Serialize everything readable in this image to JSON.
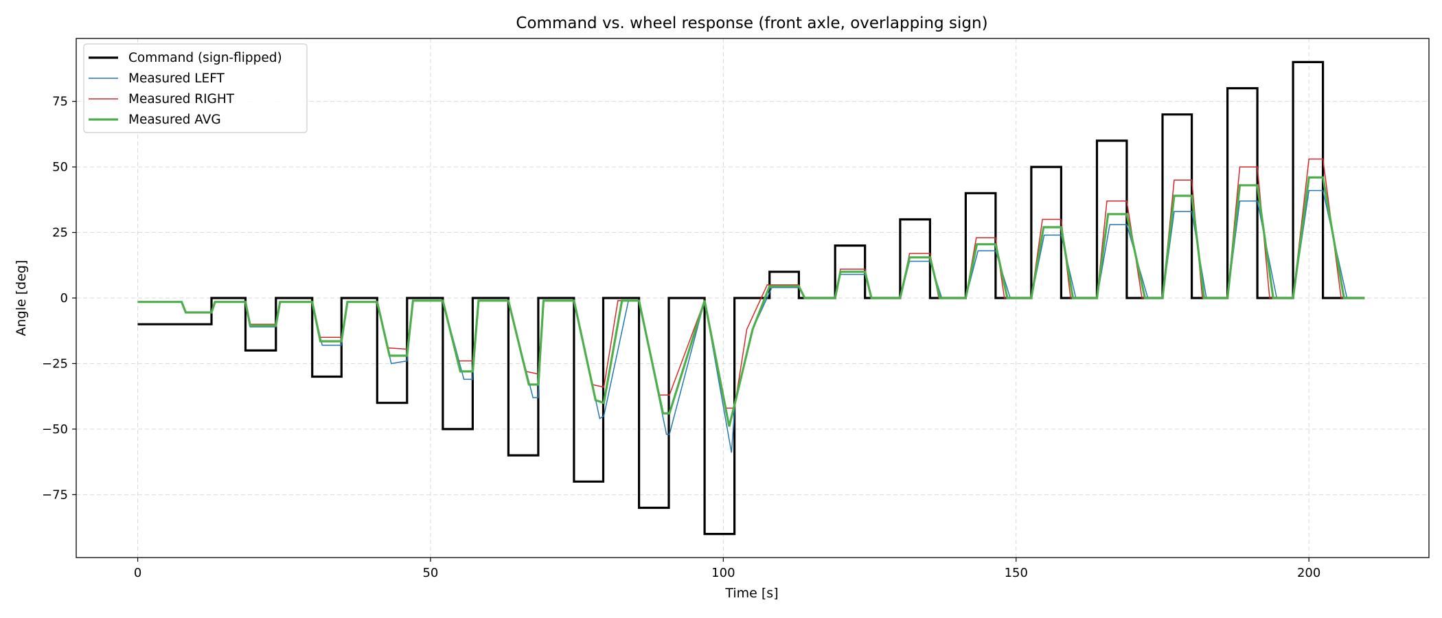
{
  "chart_data": {
    "type": "line",
    "title": "Command vs. wheel response (front axle, overlapping sign)",
    "xlabel": "Time [s]",
    "ylabel": "Angle [deg]",
    "xlim": [
      -10.5,
      220.5
    ],
    "ylim": [
      -99,
      99
    ],
    "xticks": [
      0,
      50,
      100,
      150,
      200
    ],
    "yticks": [
      -75,
      -50,
      -25,
      0,
      25,
      50,
      75
    ],
    "grid": true,
    "legend_position": "top-left",
    "series": [
      {
        "name": "Command (sign-flipped)",
        "color": "#000000",
        "style": "step",
        "x": [
          0,
          12.6,
          12.6,
          18.4,
          18.4,
          23.6,
          23.6,
          29.8,
          29.8,
          34.8,
          34.8,
          40.9,
          40.9,
          46.0,
          46.0,
          52.1,
          52.1,
          57.2,
          57.2,
          63.3,
          63.3,
          68.4,
          68.4,
          74.5,
          74.5,
          79.5,
          79.5,
          85.6,
          85.6,
          90.7,
          90.7,
          96.8,
          96.8,
          101.9,
          101.9,
          107.9,
          107.9,
          112.9,
          112.9,
          119.1,
          119.1,
          124.2,
          124.2,
          130.2,
          130.2,
          135.3,
          135.3,
          141.4,
          141.4,
          146.5,
          146.5,
          152.6,
          152.6,
          157.7,
          157.7,
          163.8,
          163.8,
          168.9,
          168.9,
          175.0,
          175.0,
          180.0,
          180.0,
          186.1,
          186.1,
          191.2,
          191.2,
          197.3,
          197.3,
          202.4,
          202.4,
          209.5
        ],
        "values": [
          -10,
          -10,
          0,
          0,
          -20,
          -20,
          0,
          0,
          -30,
          -30,
          0,
          0,
          -40,
          -40,
          0,
          0,
          -50,
          -50,
          0,
          0,
          -60,
          -60,
          0,
          0,
          -70,
          -70,
          0,
          0,
          -80,
          -80,
          0,
          0,
          -90,
          -90,
          0,
          0,
          10,
          10,
          0,
          0,
          20,
          20,
          0,
          0,
          30,
          30,
          0,
          0,
          40,
          40,
          0,
          0,
          50,
          50,
          0,
          0,
          60,
          60,
          0,
          0,
          70,
          70,
          0,
          0,
          80,
          80,
          0,
          0,
          90,
          90,
          0,
          0
        ]
      },
      {
        "name": "Measured LEFT",
        "color": "#1f77b4",
        "x": [
          0,
          7.5,
          8.2,
          12.6,
          13.2,
          18.4,
          19.2,
          23.6,
          24.3,
          29.8,
          31.5,
          34.8,
          35.8,
          40.9,
          43.3,
          46.0,
          47.0,
          52.1,
          55.7,
          57.2,
          58.2,
          63.3,
          67.5,
          68.4,
          69.3,
          74.5,
          78.9,
          79.6,
          83.8,
          85.6,
          90.3,
          90.8,
          96.8,
          101.4,
          102.0,
          105.0,
          108.3,
          112.9,
          114.0,
          119.1,
          120.0,
          124.2,
          125.3,
          130.2,
          131.8,
          135.3,
          137.3,
          141.4,
          143.5,
          146.5,
          149.0,
          152.6,
          154.8,
          157.7,
          160.2,
          163.8,
          166.0,
          168.9,
          172.5,
          175.0,
          177.0,
          180.0,
          182.5,
          186.1,
          188.2,
          191.2,
          194.5,
          197.3,
          200.0,
          202.4,
          206.5,
          209.5
        ],
        "values": [
          -1.5,
          -1.5,
          -5.5,
          -5.5,
          -1.5,
          -1.5,
          -11,
          -11,
          -1.5,
          -1.5,
          -18,
          -18,
          -1.5,
          -1.5,
          -25,
          -24,
          -1,
          -1,
          -31,
          -31,
          -1,
          -1,
          -38,
          -38,
          -1,
          -1,
          -46,
          -45,
          -1,
          -1,
          -52,
          -52,
          -1,
          -59,
          -40,
          -12,
          4,
          4,
          0,
          0,
          9,
          9,
          0,
          0,
          14,
          14,
          0,
          0,
          18,
          18,
          0,
          0,
          24,
          24,
          0,
          0,
          28,
          28,
          0,
          0,
          33,
          33,
          0,
          0,
          37,
          37,
          0,
          0,
          41,
          41,
          0,
          0
        ]
      },
      {
        "name": "Measured RIGHT",
        "color": "#d62728",
        "x": [
          0,
          7.5,
          8.2,
          12.6,
          13.2,
          18.4,
          19.2,
          23.6,
          24.3,
          29.8,
          31.0,
          34.8,
          35.8,
          40.9,
          42.6,
          46.0,
          47.0,
          52.1,
          54.6,
          57.2,
          58.2,
          63.3,
          66.3,
          68.4,
          69.3,
          74.5,
          77.6,
          79.6,
          82.0,
          85.6,
          89.1,
          90.8,
          96.8,
          100.5,
          101.9,
          104.0,
          107.5,
          112.9,
          113.8,
          119.1,
          120.0,
          124.2,
          125.3,
          130.2,
          131.8,
          135.3,
          136.8,
          141.4,
          143.2,
          146.5,
          148.0,
          152.6,
          154.5,
          157.7,
          159.3,
          163.8,
          165.5,
          168.9,
          171.5,
          175.0,
          177.0,
          180.0,
          181.8,
          186.1,
          188.2,
          191.2,
          193.3,
          197.3,
          200.0,
          202.4,
          205.5,
          209.5
        ],
        "values": [
          -1.5,
          -1.5,
          -5.5,
          -5.5,
          -1.5,
          -1.5,
          -10,
          -10,
          -1.5,
          -1.5,
          -15,
          -15,
          -1.5,
          -1.5,
          -19,
          -19.5,
          -1,
          -1,
          -24,
          -24,
          -1,
          -1,
          -28,
          -29,
          -1,
          -1,
          -33,
          -34,
          -1,
          -1,
          -37,
          -37,
          -1,
          -42,
          -42,
          -12,
          5,
          5,
          0,
          0,
          11,
          11,
          0,
          0,
          17,
          17,
          0,
          0,
          23,
          23,
          0,
          0,
          30,
          30,
          0,
          0,
          37,
          37,
          0,
          0,
          45,
          45,
          0,
          0,
          50,
          50,
          0,
          0,
          53,
          53,
          0,
          0
        ]
      },
      {
        "name": "Measured AVG",
        "color": "#4daf4a",
        "x": [
          0,
          7.5,
          8.2,
          12.6,
          13.2,
          18.4,
          19.2,
          23.6,
          24.3,
          29.8,
          31.2,
          34.8,
          35.8,
          40.9,
          43.0,
          46.0,
          47.0,
          52.1,
          55.1,
          57.2,
          58.2,
          63.3,
          66.8,
          68.4,
          69.3,
          74.5,
          78.2,
          79.6,
          82.7,
          85.6,
          89.7,
          90.8,
          96.8,
          101.0,
          102.0,
          105.0,
          107.9,
          112.9,
          113.9,
          119.1,
          120.0,
          124.2,
          125.3,
          130.2,
          131.8,
          135.3,
          137.0,
          141.4,
          143.3,
          146.5,
          148.5,
          152.6,
          154.7,
          157.7,
          159.7,
          163.8,
          165.7,
          168.9,
          172.0,
          175.0,
          177.0,
          180.0,
          182.1,
          186.1,
          188.2,
          191.2,
          193.9,
          197.3,
          200.0,
          202.4,
          206.0,
          209.5
        ],
        "values": [
          -1.5,
          -1.5,
          -5.5,
          -5.5,
          -1.5,
          -1.5,
          -10.5,
          -10.5,
          -1.5,
          -1.5,
          -16.5,
          -16.5,
          -1.5,
          -1.5,
          -22,
          -22,
          -1,
          -1,
          -28,
          -28,
          -1,
          -1,
          -33,
          -33,
          -1,
          -1,
          -39,
          -40,
          -1,
          -1,
          -44,
          -44,
          -1,
          -49,
          -40,
          -12,
          4.5,
          4.5,
          0,
          0,
          10,
          10,
          0,
          0,
          15.5,
          15.5,
          0,
          0,
          20.5,
          20.5,
          0,
          0,
          27,
          27,
          0,
          0,
          32,
          32,
          0,
          0,
          39,
          39,
          0,
          0,
          43,
          43,
          0,
          0,
          46,
          46,
          0,
          0
        ]
      }
    ]
  }
}
